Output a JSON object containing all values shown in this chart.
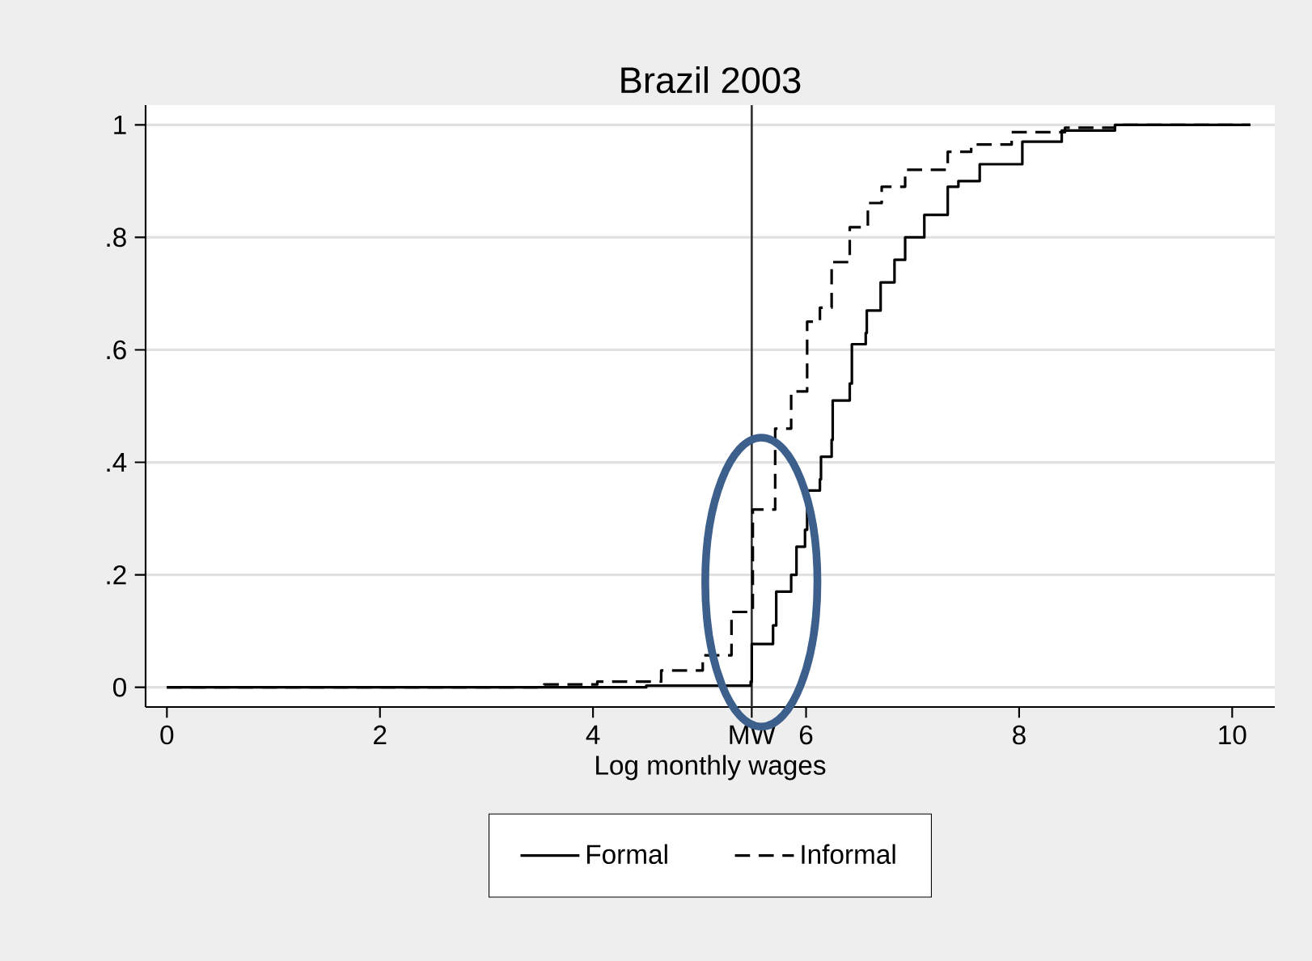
{
  "chart_data": {
    "type": "step",
    "title": "Brazil 2003",
    "xlabel": "Log monthly wages",
    "xlim": [
      -0.2,
      10.4
    ],
    "ylim": [
      -0.035,
      1.035
    ],
    "xticks": [
      0,
      2,
      4,
      {
        "value": 5.49,
        "label": "MW"
      },
      6,
      8,
      10
    ],
    "yticks": [
      0,
      {
        "value": 0.2,
        "label": ".2"
      },
      {
        "value": 0.4,
        "label": ".4"
      },
      {
        "value": 0.6,
        "label": ".6"
      },
      {
        "value": 0.8,
        "label": ".8"
      },
      1
    ],
    "grid": "y",
    "legend": "bottom",
    "ref_lines": [
      {
        "axis": "x",
        "value": 5.49,
        "color": "#333333"
      }
    ],
    "series": [
      {
        "name": "Formal",
        "color": "#000000",
        "line_style": "solid",
        "x": [
          0,
          3.0,
          4.5,
          5.48,
          5.49,
          5.69,
          5.72,
          5.86,
          5.91,
          5.99,
          6.01,
          6.13,
          6.14,
          6.24,
          6.25,
          6.41,
          6.43,
          6.56,
          6.57,
          6.7,
          6.83,
          6.93,
          7.11,
          7.33,
          7.43,
          7.63,
          8.03,
          8.4,
          8.9,
          10.17
        ],
        "values": [
          0,
          0,
          0.003,
          0.01,
          0.077,
          0.11,
          0.17,
          0.2,
          0.25,
          0.28,
          0.35,
          0.37,
          0.41,
          0.44,
          0.51,
          0.54,
          0.61,
          0.63,
          0.67,
          0.72,
          0.76,
          0.8,
          0.84,
          0.89,
          0.9,
          0.93,
          0.97,
          0.99,
          1,
          1
        ]
      },
      {
        "name": "Informal",
        "color": "#000000",
        "line_style": "dashed",
        "x": [
          0,
          3.0,
          3.54,
          4.04,
          4.64,
          5.03,
          5.3,
          5.5,
          5.71,
          5.86,
          6.01,
          6.13,
          6.24,
          6.41,
          6.58,
          6.71,
          6.93,
          7.33,
          7.55,
          7.93,
          8.43,
          8.9,
          10.17
        ],
        "values": [
          0,
          0,
          0.005,
          0.01,
          0.03,
          0.057,
          0.134,
          0.316,
          0.46,
          0.526,
          0.65,
          0.675,
          0.756,
          0.818,
          0.861,
          0.89,
          0.92,
          0.952,
          0.965,
          0.987,
          0.995,
          1,
          1
        ]
      }
    ]
  }
}
